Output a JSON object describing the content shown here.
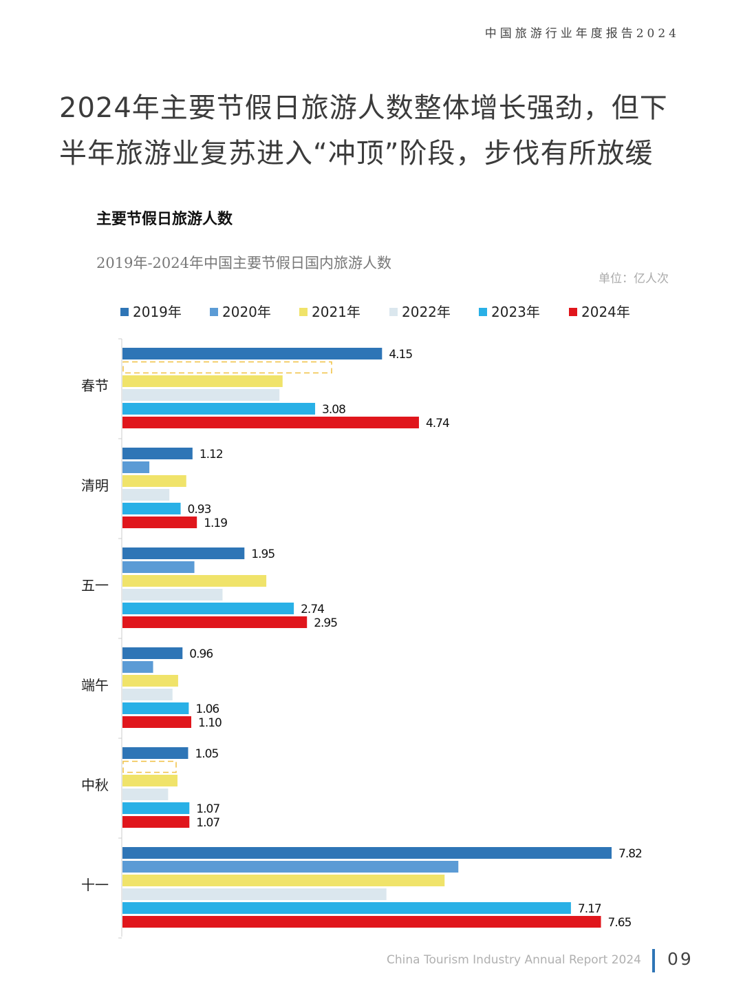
{
  "header": {
    "report_title": "中国旅游行业年度报告2024"
  },
  "headline": "2024年主要节假日旅游人数整体增长强劲，但下半年旅游业复苏进入“冲顶”阶段，步伐有所放缓",
  "section_title": "主要节假日旅游人数",
  "footer": {
    "text": "China Tourism Industry Annual Report 2024",
    "page_number": "09"
  },
  "colors": {
    "2019": "#2e75b6",
    "2020": "#5b9bd5",
    "2021": "#f0e36a",
    "2022": "#dbe7ee",
    "2023": "#29b0e6",
    "2024": "#e0161c",
    "placeholder": "#f0c040"
  },
  "chart_data": {
    "type": "bar",
    "orientation": "horizontal",
    "title": "2019年-2024年中国主要节假日国内旅游人数",
    "unit": "单位：亿人次",
    "categories": [
      "春节",
      "清明",
      "五一",
      "端午",
      "中秋",
      "十一"
    ],
    "legend_position": "top",
    "series": [
      {
        "name": "2019年",
        "values": [
          4.15,
          1.12,
          1.95,
          0.96,
          1.05,
          7.82
        ],
        "labels": [
          "4.15",
          "1.12",
          "1.95",
          "0.96",
          "1.05",
          "7.82"
        ]
      },
      {
        "name": "2020年",
        "values": [
          null,
          0.43,
          1.15,
          0.49,
          null,
          5.37
        ],
        "labels": [
          null,
          null,
          null,
          null,
          null,
          null
        ]
      },
      {
        "name": "2021年",
        "values": [
          2.56,
          1.02,
          2.3,
          0.89,
          0.88,
          5.15
        ],
        "labels": [
          null,
          null,
          null,
          null,
          null,
          null
        ]
      },
      {
        "name": "2022年",
        "values": [
          2.51,
          0.75,
          1.6,
          0.8,
          0.73,
          4.22
        ],
        "labels": [
          null,
          null,
          null,
          null,
          null,
          null
        ]
      },
      {
        "name": "2023年",
        "values": [
          3.08,
          0.93,
          2.74,
          1.06,
          1.07,
          7.17
        ],
        "labels": [
          "3.08",
          "0.93",
          "2.74",
          "1.06",
          "1.07",
          "7.17"
        ]
      },
      {
        "name": "2024年",
        "values": [
          4.74,
          1.19,
          2.95,
          1.1,
          1.07,
          7.65
        ],
        "labels": [
          "4.74",
          "1.19",
          "2.95",
          "1.10",
          "1.07",
          "7.65"
        ]
      }
    ],
    "xlim": [
      0,
      7.82
    ],
    "grid": false
  }
}
